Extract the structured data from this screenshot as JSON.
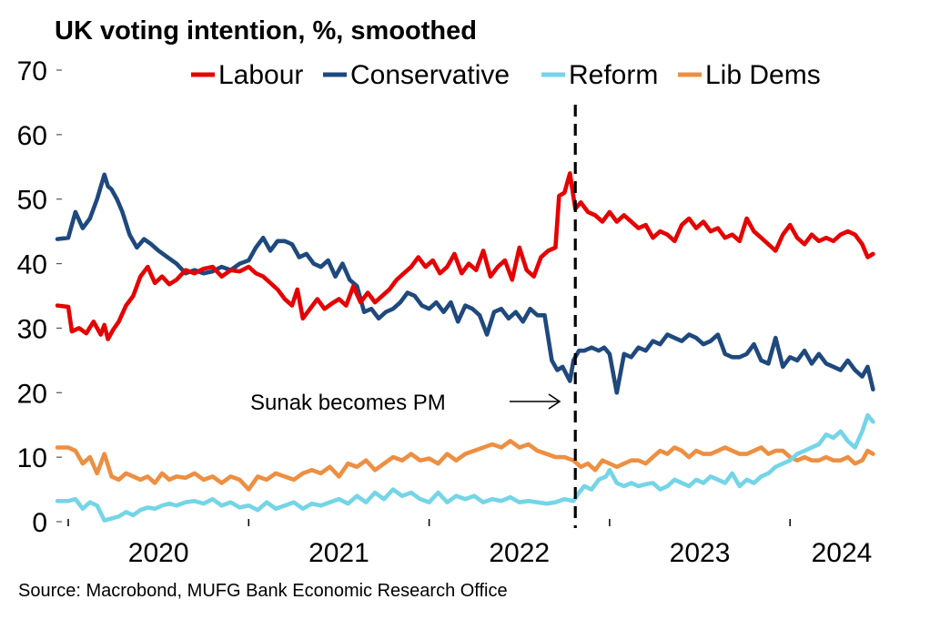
{
  "chart_data": {
    "type": "line",
    "title": "UK voting intention, %, smoothed",
    "xlabel": "",
    "ylabel": "",
    "ylim": [
      0,
      70
    ],
    "xlim": [
      2019.9,
      2024.5
    ],
    "yticks": [
      0,
      10,
      20,
      30,
      40,
      50,
      60,
      70
    ],
    "ytick_labels": [
      "0",
      "10",
      "20",
      "30",
      "40",
      "50",
      "60",
      "70"
    ],
    "xticks": [
      2020,
      2021,
      2022,
      2023,
      2024
    ],
    "xtick_labels": [
      "2020",
      "2021",
      "2022",
      "2023",
      "2024"
    ],
    "grid": false,
    "legend_position": "top",
    "annotation": {
      "text": "Sunak becomes PM",
      "x": 2022.81,
      "marker": "vertical-dashed-line"
    },
    "source": "Source: Macrobond, MUFG Bank Economic Research Office",
    "series": [
      {
        "name": "Labour",
        "color": "#e60000",
        "x": [
          2019.94,
          2020.0,
          2020.02,
          2020.06,
          2020.1,
          2020.14,
          2020.18,
          2020.2,
          2020.22,
          2020.25,
          2020.28,
          2020.32,
          2020.36,
          2020.4,
          2020.44,
          2020.48,
          2020.52,
          2020.56,
          2020.6,
          2020.65,
          2020.7,
          2020.75,
          2020.8,
          2020.85,
          2020.9,
          2020.95,
          2021.0,
          2021.04,
          2021.08,
          2021.12,
          2021.16,
          2021.2,
          2021.24,
          2021.27,
          2021.3,
          2021.34,
          2021.38,
          2021.42,
          2021.46,
          2021.5,
          2021.54,
          2021.58,
          2021.62,
          2021.66,
          2021.7,
          2021.74,
          2021.78,
          2021.82,
          2021.86,
          2021.9,
          2021.94,
          2021.98,
          2022.02,
          2022.06,
          2022.1,
          2022.14,
          2022.18,
          2022.22,
          2022.26,
          2022.3,
          2022.34,
          2022.38,
          2022.42,
          2022.46,
          2022.5,
          2022.54,
          2022.58,
          2022.62,
          2022.66,
          2022.7,
          2022.72,
          2022.75,
          2022.78,
          2022.81,
          2022.84,
          2022.88,
          2022.92,
          2022.96,
          2023.0,
          2023.04,
          2023.08,
          2023.12,
          2023.16,
          2023.2,
          2023.24,
          2023.28,
          2023.32,
          2023.36,
          2023.4,
          2023.44,
          2023.48,
          2023.52,
          2023.56,
          2023.6,
          2023.64,
          2023.68,
          2023.72,
          2023.76,
          2023.8,
          2023.84,
          2023.88,
          2023.92,
          2023.96,
          2024.0,
          2024.04,
          2024.08,
          2024.12,
          2024.16,
          2024.2,
          2024.24,
          2024.28,
          2024.32,
          2024.36,
          2024.4,
          2024.43,
          2024.46
        ],
        "values": [
          33.5,
          33.3,
          29.5,
          30.0,
          29.2,
          31.0,
          29.0,
          30.5,
          28.3,
          29.8,
          31.0,
          33.5,
          35.0,
          38.0,
          39.5,
          37.0,
          38.0,
          36.8,
          37.5,
          39.0,
          38.5,
          39.2,
          39.5,
          38.0,
          39.0,
          38.8,
          39.5,
          38.5,
          38.0,
          37.0,
          36.0,
          34.5,
          33.5,
          36.0,
          31.5,
          33.0,
          34.5,
          33.0,
          33.8,
          34.5,
          33.5,
          36.5,
          34.0,
          35.5,
          34.0,
          35.0,
          36.0,
          37.5,
          38.5,
          39.5,
          41.0,
          39.5,
          40.5,
          38.5,
          39.5,
          41.5,
          38.5,
          40.0,
          39.0,
          42.0,
          38.0,
          39.5,
          40.5,
          37.5,
          42.5,
          39.0,
          38.0,
          41.0,
          42.0,
          42.5,
          50.5,
          51.0,
          54.0,
          48.5,
          49.5,
          48.0,
          47.5,
          46.5,
          48.0,
          46.5,
          47.5,
          46.5,
          45.5,
          46.0,
          44.0,
          45.0,
          44.5,
          43.5,
          46.0,
          47.0,
          45.5,
          46.5,
          45.0,
          45.5,
          44.0,
          44.5,
          43.5,
          47.0,
          45.0,
          44.0,
          43.0,
          42.0,
          44.5,
          46.0,
          44.0,
          43.0,
          44.5,
          43.5,
          44.0,
          43.5,
          44.5,
          45.0,
          44.5,
          43.0,
          41.0,
          41.5
        ]
      },
      {
        "name": "Conservative",
        "color": "#1f497d",
        "x": [
          2019.94,
          2020.0,
          2020.04,
          2020.08,
          2020.12,
          2020.16,
          2020.2,
          2020.22,
          2020.24,
          2020.27,
          2020.3,
          2020.34,
          2020.38,
          2020.42,
          2020.46,
          2020.5,
          2020.55,
          2020.6,
          2020.65,
          2020.7,
          2020.75,
          2020.8,
          2020.85,
          2020.9,
          2020.95,
          2021.0,
          2021.04,
          2021.08,
          2021.12,
          2021.16,
          2021.2,
          2021.24,
          2021.28,
          2021.32,
          2021.36,
          2021.4,
          2021.44,
          2021.48,
          2021.52,
          2021.56,
          2021.6,
          2021.64,
          2021.68,
          2021.72,
          2021.76,
          2021.8,
          2021.84,
          2021.88,
          2021.92,
          2021.96,
          2022.0,
          2022.04,
          2022.08,
          2022.12,
          2022.16,
          2022.2,
          2022.24,
          2022.28,
          2022.32,
          2022.36,
          2022.4,
          2022.44,
          2022.48,
          2022.52,
          2022.56,
          2022.6,
          2022.64,
          2022.68,
          2022.71,
          2022.74,
          2022.78,
          2022.8,
          2022.83,
          2022.86,
          2022.9,
          2022.94,
          2022.97,
          2023.0,
          2023.04,
          2023.08,
          2023.12,
          2023.16,
          2023.2,
          2023.24,
          2023.28,
          2023.32,
          2023.36,
          2023.4,
          2023.44,
          2023.48,
          2023.52,
          2023.56,
          2023.6,
          2023.64,
          2023.68,
          2023.72,
          2023.76,
          2023.8,
          2023.84,
          2023.88,
          2023.92,
          2023.96,
          2024.0,
          2024.04,
          2024.08,
          2024.12,
          2024.16,
          2024.2,
          2024.24,
          2024.28,
          2024.32,
          2024.36,
          2024.4,
          2024.43,
          2024.46
        ],
        "values": [
          43.8,
          44.0,
          48.0,
          45.5,
          47.0,
          50.0,
          53.8,
          52.0,
          51.5,
          50.0,
          48.0,
          44.5,
          42.5,
          43.8,
          43.0,
          42.0,
          41.0,
          40.0,
          38.5,
          39.0,
          38.5,
          38.8,
          39.5,
          39.0,
          40.0,
          40.5,
          42.5,
          44.0,
          42.0,
          43.5,
          43.5,
          43.0,
          41.0,
          41.5,
          40.0,
          39.5,
          40.5,
          38.0,
          40.0,
          37.5,
          36.5,
          32.5,
          33.0,
          31.5,
          32.5,
          33.0,
          34.0,
          35.5,
          35.0,
          33.5,
          33.0,
          34.0,
          32.5,
          34.0,
          31.0,
          33.5,
          33.0,
          32.0,
          29.0,
          32.5,
          33.0,
          31.5,
          32.5,
          31.0,
          33.0,
          32.0,
          32.0,
          25.0,
          23.5,
          24.0,
          21.8,
          25.0,
          26.5,
          26.5,
          27.0,
          26.5,
          27.0,
          26.0,
          20.0,
          26.0,
          25.5,
          27.0,
          26.5,
          28.0,
          27.5,
          29.0,
          28.5,
          28.0,
          29.0,
          28.5,
          27.5,
          28.0,
          29.0,
          26.0,
          25.5,
          25.5,
          26.0,
          27.5,
          25.0,
          24.5,
          28.5,
          24.0,
          25.5,
          25.0,
          26.5,
          24.5,
          26.0,
          24.5,
          24.0,
          23.5,
          25.0,
          23.5,
          22.5,
          24.0,
          20.5
        ]
      },
      {
        "name": "Reform",
        "color": "#74d5e6",
        "x": [
          2019.94,
          2020.0,
          2020.04,
          2020.08,
          2020.12,
          2020.16,
          2020.2,
          2020.24,
          2020.28,
          2020.32,
          2020.36,
          2020.4,
          2020.44,
          2020.48,
          2020.52,
          2020.56,
          2020.6,
          2020.65,
          2020.7,
          2020.75,
          2020.8,
          2020.85,
          2020.9,
          2020.95,
          2021.0,
          2021.05,
          2021.1,
          2021.15,
          2021.2,
          2021.25,
          2021.3,
          2021.35,
          2021.4,
          2021.45,
          2021.5,
          2021.55,
          2021.6,
          2021.65,
          2021.7,
          2021.75,
          2021.8,
          2021.85,
          2021.9,
          2021.95,
          2022.0,
          2022.05,
          2022.1,
          2022.15,
          2022.2,
          2022.25,
          2022.3,
          2022.35,
          2022.4,
          2022.45,
          2022.5,
          2022.55,
          2022.6,
          2022.65,
          2022.7,
          2022.75,
          2022.8,
          2022.83,
          2022.86,
          2022.9,
          2022.94,
          2022.98,
          2023.0,
          2023.04,
          2023.08,
          2023.12,
          2023.16,
          2023.2,
          2023.24,
          2023.28,
          2023.32,
          2023.36,
          2023.4,
          2023.44,
          2023.48,
          2023.52,
          2023.56,
          2023.6,
          2023.64,
          2023.68,
          2023.72,
          2023.76,
          2023.8,
          2023.84,
          2023.88,
          2023.92,
          2023.96,
          2024.0,
          2024.04,
          2024.08,
          2024.12,
          2024.16,
          2024.2,
          2024.24,
          2024.28,
          2024.32,
          2024.36,
          2024.4,
          2024.43,
          2024.46
        ],
        "values": [
          3.2,
          3.2,
          3.5,
          2.0,
          3.0,
          2.5,
          0.2,
          0.5,
          0.8,
          1.5,
          1.0,
          1.8,
          2.2,
          2.0,
          2.5,
          2.8,
          2.5,
          3.0,
          3.2,
          2.8,
          3.5,
          2.5,
          3.0,
          2.2,
          2.5,
          1.8,
          3.0,
          2.0,
          2.5,
          3.0,
          2.0,
          2.8,
          2.5,
          3.0,
          3.5,
          2.8,
          4.0,
          3.0,
          4.5,
          3.5,
          5.0,
          4.0,
          4.5,
          3.5,
          3.0,
          4.5,
          3.0,
          4.0,
          3.5,
          4.0,
          3.0,
          3.5,
          3.2,
          3.8,
          3.0,
          3.2,
          3.0,
          2.8,
          3.0,
          3.5,
          3.2,
          4.5,
          5.5,
          5.0,
          6.5,
          7.0,
          8.0,
          6.0,
          5.5,
          6.0,
          5.5,
          5.8,
          6.0,
          5.0,
          5.5,
          6.5,
          6.0,
          5.5,
          6.5,
          6.0,
          7.0,
          6.5,
          6.0,
          7.5,
          5.5,
          6.5,
          6.0,
          7.0,
          7.5,
          8.5,
          9.0,
          9.5,
          10.5,
          11.0,
          11.5,
          12.0,
          13.5,
          13.0,
          14.0,
          12.5,
          11.5,
          14.0,
          16.5,
          15.5
        ]
      },
      {
        "name": "Lib Dems",
        "color": "#ed8f42",
        "x": [
          2019.94,
          2020.0,
          2020.04,
          2020.08,
          2020.12,
          2020.16,
          2020.2,
          2020.24,
          2020.28,
          2020.32,
          2020.36,
          2020.4,
          2020.44,
          2020.48,
          2020.52,
          2020.56,
          2020.6,
          2020.65,
          2020.7,
          2020.75,
          2020.8,
          2020.85,
          2020.9,
          2020.95,
          2021.0,
          2021.05,
          2021.1,
          2021.15,
          2021.2,
          2021.25,
          2021.3,
          2021.35,
          2021.4,
          2021.45,
          2021.5,
          2021.55,
          2021.6,
          2021.65,
          2021.7,
          2021.75,
          2021.8,
          2021.85,
          2021.9,
          2021.95,
          2022.0,
          2022.05,
          2022.1,
          2022.15,
          2022.2,
          2022.25,
          2022.3,
          2022.35,
          2022.4,
          2022.45,
          2022.5,
          2022.55,
          2022.6,
          2022.65,
          2022.7,
          2022.75,
          2022.8,
          2022.84,
          2022.88,
          2022.92,
          2022.96,
          2023.0,
          2023.04,
          2023.08,
          2023.12,
          2023.16,
          2023.2,
          2023.24,
          2023.28,
          2023.32,
          2023.36,
          2023.4,
          2023.44,
          2023.48,
          2023.52,
          2023.56,
          2023.6,
          2023.64,
          2023.68,
          2023.72,
          2023.76,
          2023.8,
          2023.84,
          2023.88,
          2023.92,
          2023.96,
          2024.0,
          2024.04,
          2024.08,
          2024.12,
          2024.16,
          2024.2,
          2024.24,
          2024.28,
          2024.32,
          2024.36,
          2024.4,
          2024.43,
          2024.46
        ],
        "values": [
          11.5,
          11.5,
          11.0,
          9.0,
          10.0,
          7.5,
          10.5,
          7.0,
          6.5,
          7.5,
          7.0,
          6.5,
          7.0,
          6.0,
          7.5,
          6.5,
          7.0,
          6.8,
          7.5,
          6.5,
          7.0,
          6.0,
          7.0,
          6.5,
          5.0,
          7.0,
          6.5,
          7.5,
          7.0,
          6.5,
          7.5,
          8.0,
          7.5,
          8.5,
          7.0,
          9.0,
          8.5,
          9.5,
          8.0,
          9.0,
          10.0,
          9.5,
          10.5,
          9.5,
          9.8,
          9.0,
          10.5,
          9.5,
          10.5,
          11.0,
          11.5,
          12.0,
          11.5,
          12.5,
          11.5,
          12.0,
          11.0,
          10.5,
          10.0,
          10.0,
          9.5,
          8.5,
          9.0,
          8.0,
          9.5,
          9.0,
          8.5,
          9.0,
          9.5,
          9.5,
          9.0,
          10.0,
          11.0,
          10.5,
          11.5,
          11.0,
          10.0,
          11.0,
          10.5,
          10.5,
          11.0,
          11.5,
          11.0,
          10.5,
          10.5,
          11.0,
          11.5,
          10.5,
          11.0,
          11.0,
          10.0,
          9.5,
          10.0,
          9.5,
          9.5,
          10.0,
          9.5,
          9.5,
          10.0,
          9.0,
          9.5,
          11.0,
          10.5
        ]
      }
    ]
  }
}
